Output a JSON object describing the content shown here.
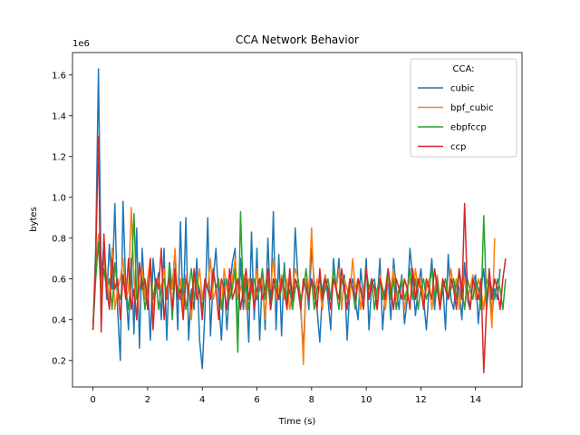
{
  "chart_data": {
    "type": "line",
    "title": "CCA Network Behavior",
    "xlabel": "Time (s)",
    "ylabel": "bytes",
    "y_multiplier_label": "1e6",
    "xlim": [
      -0.75,
      15.7
    ],
    "ylim": [
      0.07,
      1.71
    ],
    "x_ticks": [
      0,
      2,
      4,
      6,
      8,
      10,
      12,
      14
    ],
    "x_tick_labels": [
      "0",
      "2",
      "4",
      "6",
      "8",
      "10",
      "12",
      "14"
    ],
    "y_ticks": [
      0.2,
      0.4,
      0.6,
      0.8,
      1.0,
      1.2,
      1.4,
      1.6
    ],
    "y_tick_labels": [
      "0.2",
      "0.4",
      "0.6",
      "0.8",
      "1.0",
      "1.2",
      "1.4",
      "1.6"
    ],
    "grid": false,
    "legend": {
      "title": "CCA:",
      "placement": "top-right"
    },
    "x_step": 0.1,
    "series": [
      {
        "name": "cubic",
        "color": "#1f77b4",
        "values": [
          0.35,
          0.75,
          1.63,
          0.6,
          0.78,
          0.5,
          0.77,
          0.55,
          0.97,
          0.45,
          0.2,
          0.98,
          0.55,
          0.35,
          0.7,
          0.33,
          0.85,
          0.26,
          0.75,
          0.5,
          0.58,
          0.3,
          0.7,
          0.55,
          0.63,
          0.4,
          0.75,
          0.3,
          0.68,
          0.55,
          0.74,
          0.35,
          0.88,
          0.42,
          0.9,
          0.3,
          0.55,
          0.45,
          0.7,
          0.3,
          0.16,
          0.45,
          0.9,
          0.32,
          0.6,
          0.75,
          0.5,
          0.3,
          0.6,
          0.35,
          0.55,
          0.68,
          0.75,
          0.3,
          0.7,
          0.45,
          0.6,
          0.29,
          0.83,
          0.4,
          0.75,
          0.3,
          0.63,
          0.35,
          0.8,
          0.45,
          0.93,
          0.35,
          0.72,
          0.32,
          0.68,
          0.48,
          0.55,
          0.45,
          0.85,
          0.6,
          0.45,
          0.25,
          0.6,
          0.45,
          0.75,
          0.58,
          0.45,
          0.29,
          0.55,
          0.62,
          0.5,
          0.35,
          0.7,
          0.55,
          0.7,
          0.45,
          0.62,
          0.3,
          0.55,
          0.6,
          0.5,
          0.4,
          0.65,
          0.5,
          0.7,
          0.35,
          0.58,
          0.6,
          0.48,
          0.7,
          0.35,
          0.55,
          0.6,
          0.4,
          0.7,
          0.55,
          0.45,
          0.62,
          0.38,
          0.5,
          0.75,
          0.6,
          0.42,
          0.55,
          0.65,
          0.5,
          0.35,
          0.55,
          0.7,
          0.45,
          0.6,
          0.5,
          0.58,
          0.35,
          0.72,
          0.5,
          0.45,
          0.6,
          0.55,
          0.4,
          0.68,
          0.5,
          0.45,
          0.58,
          0.62,
          0.38,
          0.55,
          0.65,
          0.45,
          0.6,
          0.42,
          0.55,
          0.5,
          0.65
        ]
      },
      {
        "name": "bpf_cubic",
        "color": "#ff7f0e",
        "values": [
          0.35,
          0.65,
          0.82,
          0.55,
          0.7,
          0.6,
          0.5,
          0.75,
          0.45,
          0.55,
          0.6,
          0.7,
          0.5,
          0.55,
          0.95,
          0.6,
          0.4,
          0.55,
          0.65,
          0.5,
          0.6,
          0.7,
          0.45,
          0.55,
          0.6,
          0.55,
          0.65,
          0.5,
          0.6,
          0.55,
          0.75,
          0.5,
          0.6,
          0.45,
          0.62,
          0.55,
          0.4,
          0.6,
          0.55,
          0.65,
          0.5,
          0.6,
          0.55,
          0.7,
          0.5,
          0.55,
          0.6,
          0.45,
          0.65,
          0.55,
          0.5,
          0.6,
          0.7,
          0.5,
          0.55,
          0.62,
          0.45,
          0.6,
          0.55,
          0.5,
          0.65,
          0.55,
          0.6,
          0.4,
          0.6,
          0.55,
          0.7,
          0.5,
          0.55,
          0.62,
          0.5,
          0.6,
          0.45,
          0.55,
          0.65,
          0.6,
          0.5,
          0.18,
          0.6,
          0.55,
          0.85,
          0.5,
          0.6,
          0.55,
          0.45,
          0.62,
          0.55,
          0.5,
          0.6,
          0.55,
          0.65,
          0.45,
          0.6,
          0.55,
          0.5,
          0.7,
          0.55,
          0.6,
          0.45,
          0.55,
          0.65,
          0.5,
          0.6,
          0.55,
          0.5,
          0.62,
          0.55,
          0.45,
          0.6,
          0.55,
          0.65,
          0.5,
          0.55,
          0.6,
          0.45,
          0.55,
          0.6,
          0.5,
          0.65,
          0.55,
          0.6,
          0.5,
          0.55,
          0.6,
          0.45,
          0.55,
          0.62,
          0.5,
          0.6,
          0.55,
          0.5,
          0.65,
          0.55,
          0.6,
          0.45,
          0.55,
          0.6,
          0.5,
          0.55,
          0.62,
          0.5,
          0.6,
          0.55,
          0.45,
          0.6,
          0.55,
          0.36,
          0.8
        ]
      },
      {
        "name": "ebpfccp",
        "color": "#2ca02c",
        "values": [
          0.35,
          0.6,
          0.78,
          0.5,
          0.65,
          0.55,
          0.6,
          0.45,
          0.68,
          0.55,
          0.5,
          0.6,
          0.55,
          0.45,
          0.6,
          0.92,
          0.5,
          0.55,
          0.6,
          0.45,
          0.55,
          0.65,
          0.5,
          0.6,
          0.45,
          0.55,
          0.6,
          0.5,
          0.68,
          0.4,
          0.6,
          0.55,
          0.5,
          0.6,
          0.45,
          0.55,
          0.65,
          0.5,
          0.6,
          0.55,
          0.45,
          0.6,
          0.55,
          0.5,
          0.65,
          0.55,
          0.6,
          0.45,
          0.55,
          0.6,
          0.5,
          0.55,
          0.65,
          0.24,
          0.93,
          0.5,
          0.6,
          0.45,
          0.55,
          0.6,
          0.5,
          0.55,
          0.65,
          0.5,
          0.6,
          0.45,
          0.55,
          0.6,
          0.5,
          0.55,
          0.65,
          0.5,
          0.6,
          0.45,
          0.55,
          0.6,
          0.5,
          0.55,
          0.65,
          0.5,
          0.6,
          0.45,
          0.55,
          0.6,
          0.5,
          0.55,
          0.6,
          0.5,
          0.65,
          0.55,
          0.45,
          0.6,
          0.55,
          0.5,
          0.6,
          0.55,
          0.45,
          0.6,
          0.55,
          0.5,
          0.65,
          0.55,
          0.6,
          0.45,
          0.55,
          0.6,
          0.5,
          0.55,
          0.65,
          0.5,
          0.6,
          0.45,
          0.55,
          0.6,
          0.5,
          0.55,
          0.65,
          0.5,
          0.6,
          0.45,
          0.55,
          0.6,
          0.5,
          0.55,
          0.65,
          0.5,
          0.6,
          0.45,
          0.55,
          0.6,
          0.5,
          0.55,
          0.6,
          0.5,
          0.65,
          0.55,
          0.45,
          0.6,
          0.55,
          0.5,
          0.6,
          0.55,
          0.45,
          0.91,
          0.5,
          0.6,
          0.55,
          0.5,
          0.6,
          0.55,
          0.45,
          0.6
        ]
      },
      {
        "name": "ccp",
        "color": "#d62728",
        "values": [
          0.35,
          0.7,
          1.3,
          0.34,
          0.82,
          0.55,
          0.45,
          0.7,
          0.55,
          0.6,
          0.4,
          0.62,
          0.5,
          0.7,
          0.45,
          0.55,
          0.4,
          0.68,
          0.55,
          0.6,
          0.45,
          0.7,
          0.35,
          0.6,
          0.55,
          0.75,
          0.4,
          0.55,
          0.6,
          0.45,
          0.65,
          0.5,
          0.55,
          0.4,
          0.6,
          0.55,
          0.45,
          0.65,
          0.5,
          0.55,
          0.4,
          0.6,
          0.55,
          0.5,
          0.65,
          0.55,
          0.4,
          0.6,
          0.55,
          0.45,
          0.65,
          0.5,
          0.55,
          0.6,
          0.45,
          0.55,
          0.65,
          0.5,
          0.6,
          0.45,
          0.55,
          0.6,
          0.5,
          0.55,
          0.65,
          0.45,
          0.6,
          0.55,
          0.5,
          0.6,
          0.55,
          0.45,
          0.65,
          0.5,
          0.6,
          0.55,
          0.45,
          0.6,
          0.55,
          0.5,
          0.6,
          0.55,
          0.45,
          0.65,
          0.5,
          0.6,
          0.55,
          0.45,
          0.6,
          0.55,
          0.5,
          0.65,
          0.55,
          0.45,
          0.6,
          0.55,
          0.5,
          0.6,
          0.55,
          0.45,
          0.65,
          0.5,
          0.6,
          0.55,
          0.45,
          0.6,
          0.55,
          0.5,
          0.65,
          0.55,
          0.45,
          0.6,
          0.55,
          0.5,
          0.6,
          0.55,
          0.45,
          0.65,
          0.5,
          0.6,
          0.55,
          0.45,
          0.6,
          0.55,
          0.5,
          0.65,
          0.55,
          0.45,
          0.6,
          0.55,
          0.5,
          0.6,
          0.55,
          0.45,
          0.65,
          0.5,
          0.97,
          0.55,
          0.45,
          0.6,
          0.55,
          0.5,
          0.6,
          0.14,
          0.45,
          0.65,
          0.5,
          0.6,
          0.55,
          0.45,
          0.6,
          0.7
        ]
      }
    ]
  }
}
